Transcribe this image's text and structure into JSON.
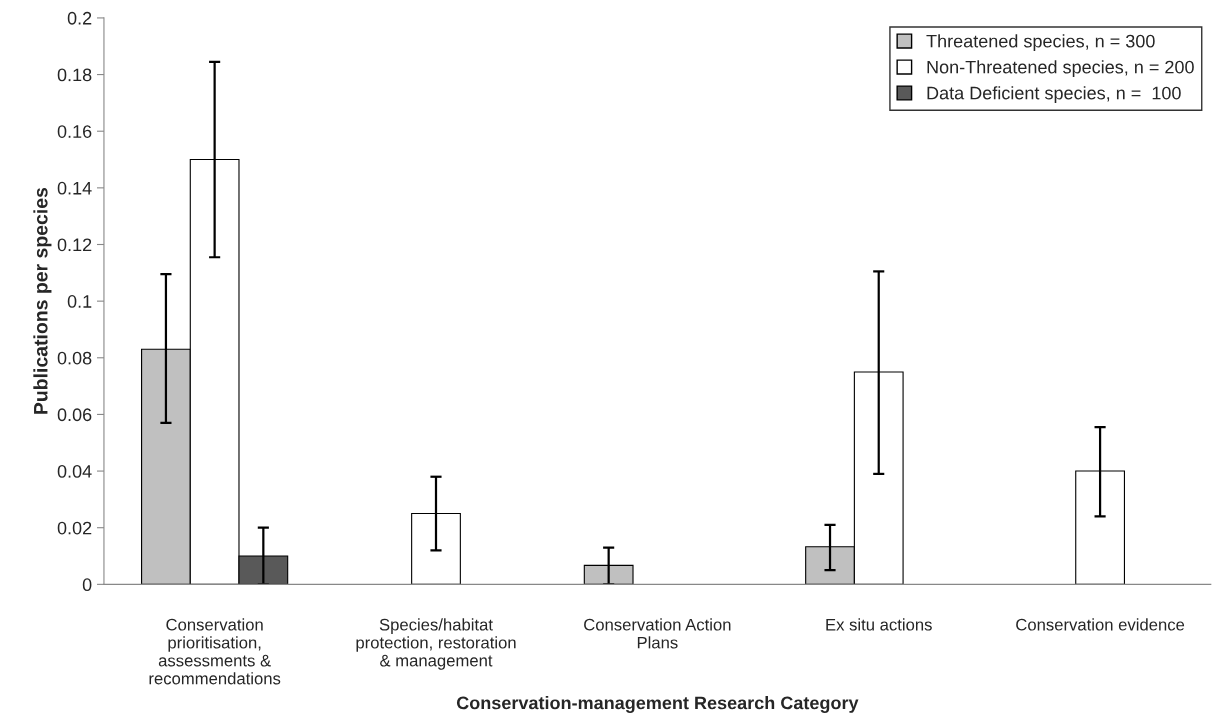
{
  "chart_data": {
    "type": "bar",
    "xlabel": "Conservation-management Research Category",
    "ylabel": "Publications per species",
    "categories": [
      "Conservation\nprioritisation,\nassessments &\nrecommendations",
      "Species/habitat\nprotection, restoration\n& management",
      "Conservation Action\nPlans",
      "Ex situ actions",
      "Conservation evidence"
    ],
    "series": [
      {
        "name": "Threatened species, n = 300",
        "color": "#c0c0c0",
        "values": [
          0.083,
          null,
          0.0067,
          0.0133,
          null
        ],
        "errors": [
          [
            0.057,
            0.1095
          ],
          null,
          [
            0.0,
            0.013
          ],
          [
            0.005,
            0.021
          ],
          null
        ]
      },
      {
        "name": "Non-Threatened species, n = 200",
        "color": "#ffffff",
        "values": [
          0.15,
          0.025,
          null,
          0.075,
          0.04
        ],
        "errors": [
          [
            0.1155,
            0.1845
          ],
          [
            0.012,
            0.038
          ],
          null,
          [
            0.039,
            0.1105
          ],
          [
            0.024,
            0.0555
          ]
        ]
      },
      {
        "name": "Data Deficient species, n =  100",
        "color": "#595959",
        "values": [
          0.01,
          null,
          null,
          null,
          null
        ],
        "errors": [
          [
            0.0,
            0.02
          ],
          null,
          null,
          null,
          null
        ]
      }
    ],
    "ylim": [
      0,
      0.2
    ],
    "yticks": [
      0,
      0.02,
      0.04,
      0.06,
      0.08,
      0.1,
      0.12,
      0.14,
      0.16,
      0.18,
      0.2
    ],
    "grid": false,
    "legend": "top right"
  }
}
